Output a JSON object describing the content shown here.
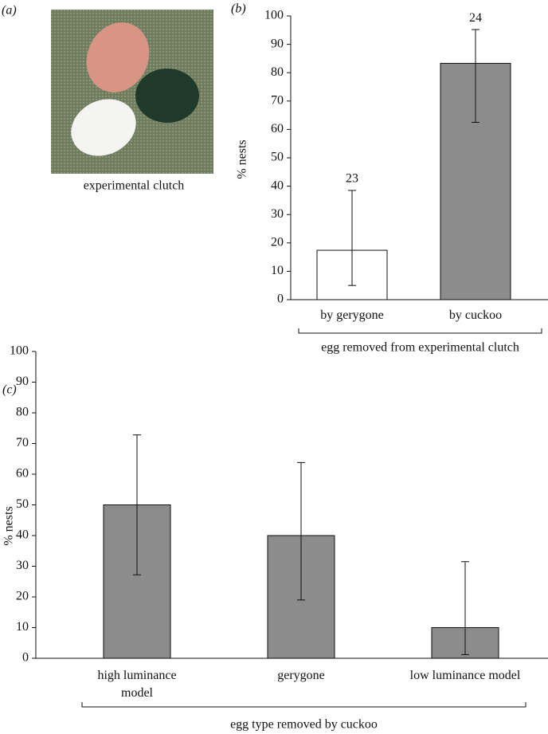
{
  "panel_a": {
    "label": "(a)",
    "caption": "experimental clutch"
  },
  "chart_data": [
    {
      "type": "bar",
      "panel_label": "(b)",
      "ylabel": "% nests",
      "xlabel": "egg removed from experimental clutch",
      "categories": [
        "by gerygone",
        "by cuckoo"
      ],
      "values": [
        17.4,
        83.3
      ],
      "error_lower": [
        5,
        62.5
      ],
      "error_upper": [
        38.5,
        95.2
      ],
      "sample_sizes": [
        23,
        24
      ],
      "colors": [
        "#ffffff",
        "#8c8c8c"
      ],
      "ylim": [
        0,
        100
      ],
      "yticks": [
        0,
        10,
        20,
        30,
        40,
        50,
        60,
        70,
        80,
        90,
        100
      ]
    },
    {
      "type": "bar",
      "panel_label": "(c)",
      "ylabel": "% nests",
      "xlabel": "egg type removed by cuckoo",
      "categories": [
        "high luminance model",
        "gerygone",
        "low luminance model"
      ],
      "values": [
        50,
        40,
        10
      ],
      "error_lower": [
        27.2,
        19,
        1.2
      ],
      "error_upper": [
        72.8,
        63.8,
        31.5
      ],
      "colors": [
        "#8c8c8c",
        "#8c8c8c",
        "#8c8c8c"
      ],
      "ylim": [
        0,
        100
      ],
      "yticks": [
        0,
        10,
        20,
        30,
        40,
        50,
        60,
        70,
        80,
        90,
        100
      ]
    }
  ]
}
